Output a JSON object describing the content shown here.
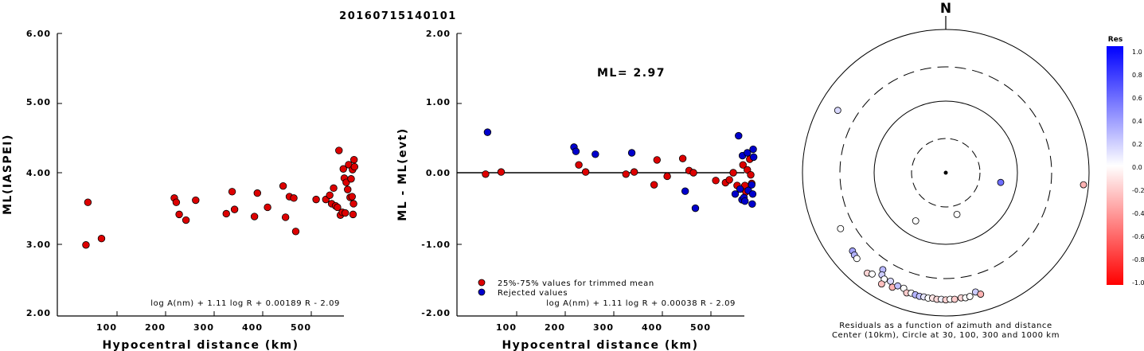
{
  "title": "20160715140101",
  "colors": {
    "accepted": "#dd0000",
    "rejected": "#0000cc",
    "axis": "#000000"
  },
  "charts": {
    "left": {
      "ylabel": "ML(IASPEI)",
      "xlabel": "Hypocentral distance (km)",
      "xticks": [
        "100",
        "200",
        "300",
        "400",
        "500"
      ],
      "yticks": [
        "2.00",
        "3.00",
        "4.00",
        "5.00",
        "6.00"
      ],
      "formula": "log A(nm) + 1.11 log R + 0.00189 R - 2.09"
    },
    "middle": {
      "ylabel": "ML - ML(evt)",
      "xlabel": "Hypocentral distance (km)",
      "xticks": [
        "100",
        "200",
        "300",
        "400",
        "500"
      ],
      "yticks": [
        "-2.00",
        "-1.00",
        "0.00",
        "1.00",
        "2.00"
      ],
      "ml_text": "ML= 2.97",
      "legend": [
        "25%-75% values for trimmed mean",
        "Rejected values"
      ],
      "formula": "log A(nm) + 1.11 log R + 0.00038 R - 2.09"
    },
    "polar": {
      "north": "N",
      "caption1": "Residuals as a function of azimuth and distance",
      "caption2": "Center (10km), Circle at 30, 100, 300 and 1000 km",
      "colorbar_title": "Res",
      "colorbar_ticks": [
        "1.0",
        "0.8",
        "0.6",
        "0.4",
        "0.2",
        "0.0",
        "-0.2",
        "-0.4",
        "-0.6",
        "-0.8",
        "-1.0"
      ]
    }
  },
  "chart_data": [
    {
      "type": "scatter",
      "title": "20160715140101",
      "xlabel": "Hypocentral distance (km)",
      "ylabel": "ML(IASPEI)",
      "xlim": [
        0,
        590
      ],
      "ylim": [
        2.0,
        6.0
      ],
      "series": [
        {
          "points": [
            [
              36,
              3.0
            ],
            [
              40,
              3.6
            ],
            [
              68,
              3.09
            ],
            [
              218,
              3.66
            ],
            [
              222,
              3.6
            ],
            [
              228,
              3.43
            ],
            [
              242,
              3.35
            ],
            [
              262,
              3.63
            ],
            [
              325,
              3.44
            ],
            [
              337,
              3.75
            ],
            [
              342,
              3.5
            ],
            [
              383,
              3.4
            ],
            [
              389,
              3.73
            ],
            [
              410,
              3.53
            ],
            [
              442,
              3.83
            ],
            [
              447,
              3.39
            ],
            [
              455,
              3.68
            ],
            [
              464,
              3.66
            ],
            [
              468,
              3.19
            ],
            [
              510,
              3.64
            ],
            [
              530,
              3.64
            ],
            [
              538,
              3.7
            ],
            [
              542,
              3.58
            ],
            [
              546,
              3.8
            ],
            [
              550,
              3.55
            ],
            [
              554,
              3.53
            ],
            [
              557,
              4.33
            ],
            [
              560,
              3.42
            ],
            [
              564,
              3.46
            ],
            [
              566,
              4.07
            ],
            [
              568,
              3.94
            ],
            [
              570,
              3.45
            ],
            [
              572,
              3.88
            ],
            [
              575,
              3.78
            ],
            [
              577,
              4.13
            ],
            [
              580,
              3.67
            ],
            [
              582,
              3.93
            ],
            [
              584,
              3.68
            ],
            [
              585,
              4.06
            ],
            [
              586,
              3.43
            ],
            [
              587,
              3.58
            ],
            [
              588,
              4.2
            ],
            [
              589,
              4.1
            ]
          ]
        }
      ]
    },
    {
      "type": "scatter",
      "xlabel": "Hypocentral distance (km)",
      "ylabel": "ML - ML(evt)",
      "xlim": [
        0,
        590
      ],
      "ylim": [
        -2.0,
        2.0
      ],
      "reference_line": 0.0,
      "series": [
        {
          "name": "25%-75% values for trimmed mean",
          "color": "#dd0000",
          "points": [
            [
              36,
              -0.02
            ],
            [
              68,
              0.01
            ],
            [
              228,
              0.11
            ],
            [
              242,
              0.01
            ],
            [
              325,
              -0.02
            ],
            [
              342,
              0.01
            ],
            [
              383,
              -0.17
            ],
            [
              389,
              0.18
            ],
            [
              410,
              -0.05
            ],
            [
              442,
              0.2
            ],
            [
              455,
              0.03
            ],
            [
              464,
              0.0
            ],
            [
              510,
              -0.11
            ],
            [
              530,
              -0.14
            ],
            [
              538,
              -0.1
            ],
            [
              546,
              0.0
            ],
            [
              554,
              -0.18
            ],
            [
              566,
              0.11
            ],
            [
              570,
              -0.18
            ],
            [
              572,
              -0.27
            ],
            [
              575,
              0.04
            ],
            [
              580,
              0.19
            ],
            [
              582,
              -0.03
            ],
            [
              584,
              -0.15
            ]
          ]
        },
        {
          "name": "Rejected values",
          "color": "#0000cc",
          "points": [
            [
              40,
              0.57
            ],
            [
              218,
              0.36
            ],
            [
              222,
              0.3
            ],
            [
              262,
              0.26
            ],
            [
              337,
              0.28
            ],
            [
              447,
              -0.26
            ],
            [
              468,
              -0.5
            ],
            [
              550,
              -0.3
            ],
            [
              557,
              0.52
            ],
            [
              560,
              -0.23
            ],
            [
              564,
              -0.38
            ],
            [
              565,
              0.24
            ],
            [
              568,
              -0.35
            ],
            [
              570,
              -0.4
            ],
            [
              575,
              0.28
            ],
            [
              577,
              -0.25
            ],
            [
              584,
              -0.17
            ],
            [
              585,
              -0.44
            ],
            [
              586,
              -0.3
            ],
            [
              587,
              0.33
            ],
            [
              588,
              0.22
            ]
          ]
        }
      ]
    },
    {
      "type": "scatter",
      "subtype": "polar-residual-map",
      "distance_scale": "log",
      "center_km": 10,
      "circles_km": [
        30,
        100,
        300,
        1000
      ],
      "color_range": [
        -1.0,
        1.0
      ],
      "stations": [
        {
          "az": 165,
          "dist": 40,
          "res": 0.0
        },
        {
          "az": 100,
          "dist": 60,
          "res": 0.57
        },
        {
          "az": 212,
          "dist": 62,
          "res": 0.0
        },
        {
          "az": 300,
          "dist": 550,
          "res": 0.15
        },
        {
          "az": 242,
          "dist": 460,
          "res": 0.0
        },
        {
          "az": 95,
          "dist": 850,
          "res": -0.3
        },
        {
          "az": 230,
          "dist": 500,
          "res": 0.36
        },
        {
          "az": 228,
          "dist": 520,
          "res": 0.3
        },
        {
          "az": 226,
          "dist": 530,
          "res": 0.0
        },
        {
          "az": 218,
          "dist": 600,
          "res": -0.17
        },
        {
          "az": 216,
          "dist": 560,
          "res": 0.0
        },
        {
          "az": 213,
          "dist": 410,
          "res": 0.28
        },
        {
          "az": 212,
          "dist": 480,
          "res": 0.2
        },
        {
          "az": 210,
          "dist": 520,
          "res": 0.0
        },
        {
          "az": 210,
          "dist": 620,
          "res": -0.25
        },
        {
          "az": 207,
          "dist": 500,
          "res": 0.15
        },
        {
          "az": 205,
          "dist": 580,
          "res": -0.3
        },
        {
          "az": 203,
          "dist": 520,
          "res": 0.25
        },
        {
          "az": 200,
          "dist": 520,
          "res": 0.0
        },
        {
          "az": 198,
          "dist": 580,
          "res": -0.2
        },
        {
          "az": 196,
          "dist": 560,
          "res": 0.0
        },
        {
          "az": 194,
          "dist": 570,
          "res": 0.3
        },
        {
          "az": 192,
          "dist": 580,
          "res": 0.25
        },
        {
          "az": 190,
          "dist": 575,
          "res": 0.1
        },
        {
          "az": 188,
          "dist": 585,
          "res": 0.0
        },
        {
          "az": 186,
          "dist": 575,
          "res": -0.1
        },
        {
          "az": 184,
          "dist": 590,
          "res": -0.15
        },
        {
          "az": 182,
          "dist": 585,
          "res": 0.05
        },
        {
          "az": 180,
          "dist": 595,
          "res": -0.18
        },
        {
          "az": 178,
          "dist": 585,
          "res": 0.0
        },
        {
          "az": 176,
          "dist": 590,
          "res": -0.2
        },
        {
          "az": 173,
          "dist": 575,
          "res": -0.15
        },
        {
          "az": 171,
          "dist": 585,
          "res": 0.0
        },
        {
          "az": 169,
          "dist": 575,
          "res": 0.0
        },
        {
          "az": 166,
          "dist": 520,
          "res": 0.2
        },
        {
          "az": 164,
          "dist": 580,
          "res": -0.3
        }
      ]
    }
  ]
}
